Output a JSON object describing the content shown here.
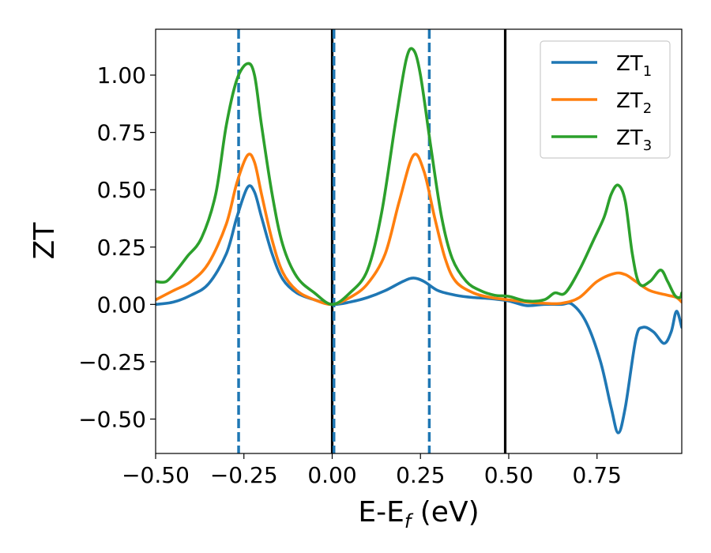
{
  "chart_data": {
    "type": "line",
    "title": "",
    "xlabel": {
      "main": "E-E",
      "sub": "f",
      "suffix": " (eV)"
    },
    "ylabel": "ZT",
    "xlim": [
      -0.5,
      0.99
    ],
    "ylim": [
      -0.65,
      1.2
    ],
    "x_ticks": [
      {
        "value": -0.5,
        "label": "−0.50"
      },
      {
        "value": -0.25,
        "label": "−0.25"
      },
      {
        "value": 0.0,
        "label": "0.00"
      },
      {
        "value": 0.25,
        "label": "0.25"
      },
      {
        "value": 0.5,
        "label": "0.50"
      },
      {
        "value": 0.75,
        "label": "0.75"
      }
    ],
    "y_ticks": [
      {
        "value": -0.5,
        "label": "−0.50"
      },
      {
        "value": -0.25,
        "label": "−0.25"
      },
      {
        "value": 0.0,
        "label": "0.00"
      },
      {
        "value": 0.25,
        "label": "0.25"
      },
      {
        "value": 0.5,
        "label": "0.50"
      },
      {
        "value": 0.75,
        "label": "0.75"
      },
      {
        "value": 1.0,
        "label": "1.00"
      }
    ],
    "grid": false,
    "legend_position": "top-right",
    "reference_lines": [
      {
        "x": 0.0,
        "style": "solid",
        "color": "#000000"
      },
      {
        "x": 0.49,
        "style": "solid",
        "color": "#000000"
      },
      {
        "x": -0.265,
        "style": "dashed",
        "color": "#1f77b4"
      },
      {
        "x": 0.005,
        "style": "dashed",
        "color": "#1f77b4"
      },
      {
        "x": 0.275,
        "style": "dashed",
        "color": "#1f77b4"
      }
    ],
    "series": [
      {
        "name": "ZT",
        "name_sub": "1",
        "color": "#1f77b4",
        "points": [
          [
            -0.5,
            0.0
          ],
          [
            -0.45,
            0.01
          ],
          [
            -0.4,
            0.04
          ],
          [
            -0.35,
            0.09
          ],
          [
            -0.3,
            0.22
          ],
          [
            -0.27,
            0.38
          ],
          [
            -0.24,
            0.51
          ],
          [
            -0.22,
            0.49
          ],
          [
            -0.2,
            0.38
          ],
          [
            -0.17,
            0.22
          ],
          [
            -0.14,
            0.11
          ],
          [
            -0.1,
            0.05
          ],
          [
            -0.05,
            0.02
          ],
          [
            0.0,
            0.0
          ],
          [
            0.05,
            0.01
          ],
          [
            0.1,
            0.03
          ],
          [
            0.15,
            0.06
          ],
          [
            0.2,
            0.1
          ],
          [
            0.23,
            0.115
          ],
          [
            0.26,
            0.1
          ],
          [
            0.3,
            0.06
          ],
          [
            0.35,
            0.04
          ],
          [
            0.4,
            0.03
          ],
          [
            0.45,
            0.025
          ],
          [
            0.5,
            0.015
          ],
          [
            0.55,
            -0.005
          ],
          [
            0.6,
            0.0
          ],
          [
            0.65,
            0.0
          ],
          [
            0.68,
            0.0
          ],
          [
            0.72,
            -0.08
          ],
          [
            0.76,
            -0.25
          ],
          [
            0.79,
            -0.45
          ],
          [
            0.81,
            -0.56
          ],
          [
            0.83,
            -0.45
          ],
          [
            0.86,
            -0.15
          ],
          [
            0.88,
            -0.1
          ],
          [
            0.91,
            -0.12
          ],
          [
            0.94,
            -0.17
          ],
          [
            0.96,
            -0.12
          ],
          [
            0.975,
            -0.03
          ],
          [
            0.99,
            -0.1
          ]
        ]
      },
      {
        "name": "ZT",
        "name_sub": "2",
        "color": "#ff7f0e",
        "points": [
          [
            -0.5,
            0.02
          ],
          [
            -0.45,
            0.06
          ],
          [
            -0.4,
            0.1
          ],
          [
            -0.35,
            0.18
          ],
          [
            -0.3,
            0.35
          ],
          [
            -0.27,
            0.53
          ],
          [
            -0.24,
            0.65
          ],
          [
            -0.22,
            0.62
          ],
          [
            -0.2,
            0.48
          ],
          [
            -0.17,
            0.28
          ],
          [
            -0.14,
            0.14
          ],
          [
            -0.1,
            0.06
          ],
          [
            -0.05,
            0.02
          ],
          [
            0.0,
            0.0
          ],
          [
            0.05,
            0.03
          ],
          [
            0.1,
            0.09
          ],
          [
            0.15,
            0.22
          ],
          [
            0.19,
            0.45
          ],
          [
            0.23,
            0.65
          ],
          [
            0.26,
            0.58
          ],
          [
            0.29,
            0.38
          ],
          [
            0.32,
            0.2
          ],
          [
            0.35,
            0.1
          ],
          [
            0.4,
            0.05
          ],
          [
            0.45,
            0.03
          ],
          [
            0.5,
            0.02
          ],
          [
            0.55,
            0.01
          ],
          [
            0.6,
            0.005
          ],
          [
            0.65,
            0.005
          ],
          [
            0.7,
            0.03
          ],
          [
            0.75,
            0.1
          ],
          [
            0.8,
            0.135
          ],
          [
            0.83,
            0.13
          ],
          [
            0.86,
            0.1
          ],
          [
            0.9,
            0.06
          ],
          [
            0.95,
            0.04
          ],
          [
            0.975,
            0.03
          ],
          [
            0.99,
            0.01
          ]
        ]
      },
      {
        "name": "ZT",
        "name_sub": "3",
        "color": "#2ca02c",
        "points": [
          [
            -0.5,
            0.1
          ],
          [
            -0.47,
            0.1
          ],
          [
            -0.44,
            0.15
          ],
          [
            -0.41,
            0.21
          ],
          [
            -0.37,
            0.29
          ],
          [
            -0.33,
            0.48
          ],
          [
            -0.3,
            0.78
          ],
          [
            -0.27,
            0.98
          ],
          [
            -0.24,
            1.05
          ],
          [
            -0.22,
            1.0
          ],
          [
            -0.2,
            0.78
          ],
          [
            -0.17,
            0.48
          ],
          [
            -0.14,
            0.26
          ],
          [
            -0.1,
            0.12
          ],
          [
            -0.05,
            0.05
          ],
          [
            0.0,
            0.0
          ],
          [
            0.05,
            0.05
          ],
          [
            0.1,
            0.15
          ],
          [
            0.14,
            0.4
          ],
          [
            0.18,
            0.8
          ],
          [
            0.21,
            1.07
          ],
          [
            0.23,
            1.11
          ],
          [
            0.25,
            1.0
          ],
          [
            0.28,
            0.68
          ],
          [
            0.31,
            0.38
          ],
          [
            0.34,
            0.2
          ],
          [
            0.38,
            0.1
          ],
          [
            0.42,
            0.06
          ],
          [
            0.46,
            0.04
          ],
          [
            0.5,
            0.035
          ],
          [
            0.55,
            0.015
          ],
          [
            0.6,
            0.02
          ],
          [
            0.63,
            0.05
          ],
          [
            0.66,
            0.05
          ],
          [
            0.7,
            0.15
          ],
          [
            0.74,
            0.28
          ],
          [
            0.77,
            0.38
          ],
          [
            0.79,
            0.48
          ],
          [
            0.81,
            0.52
          ],
          [
            0.83,
            0.45
          ],
          [
            0.85,
            0.22
          ],
          [
            0.87,
            0.09
          ],
          [
            0.9,
            0.1
          ],
          [
            0.93,
            0.15
          ],
          [
            0.95,
            0.1
          ],
          [
            0.97,
            0.04
          ],
          [
            0.985,
            0.03
          ],
          [
            0.99,
            0.05
          ]
        ]
      }
    ]
  }
}
